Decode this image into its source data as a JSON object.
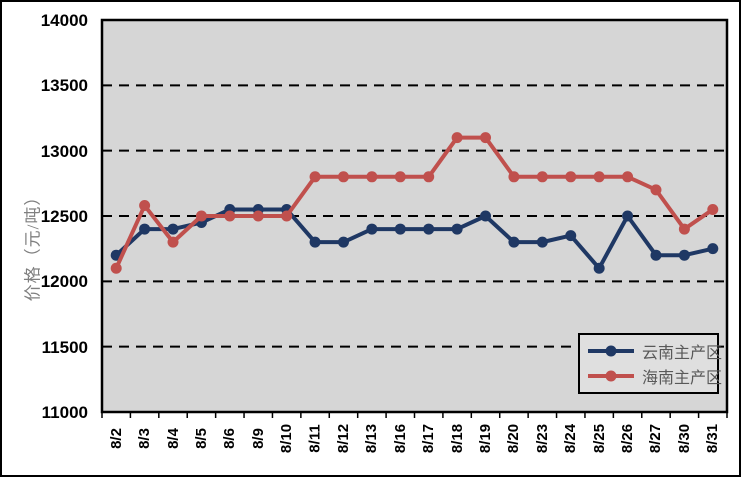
{
  "chart_data": {
    "type": "line",
    "title": "",
    "y_axis_title": "价格（元/吨）",
    "x_axis_title": "",
    "categories": [
      "8/2",
      "8/3",
      "8/4",
      "8/5",
      "8/6",
      "8/9",
      "8/10",
      "8/11",
      "8/12",
      "8/13",
      "8/16",
      "8/17",
      "8/18",
      "8/19",
      "8/20",
      "8/23",
      "8/24",
      "8/25",
      "8/26",
      "8/27",
      "8/30",
      "8/31"
    ],
    "series": [
      {
        "key": "yunnan",
        "name": "云南主产区",
        "color": "#1F3864",
        "values": [
          12200,
          12400,
          12400,
          12450,
          12550,
          12550,
          12550,
          12300,
          12300,
          12400,
          12400,
          12400,
          12400,
          12500,
          12300,
          12300,
          12350,
          12100,
          12500,
          12200,
          12200,
          12250
        ]
      },
      {
        "key": "hainan",
        "name": "海南主产区",
        "color": "#C0504D",
        "values": [
          12100,
          12580,
          12300,
          12500,
          12500,
          12500,
          12500,
          12800,
          12800,
          12800,
          12800,
          12800,
          13100,
          13100,
          12800,
          12800,
          12800,
          12800,
          12800,
          12700,
          12400,
          12550
        ]
      }
    ],
    "y_min": 11000,
    "y_max": 14000,
    "y_step": 500,
    "ylim": [
      11000,
      14000
    ],
    "grid": "horizontal-dashed",
    "legend_position": "bottom-right",
    "plot_background": "#D6D6D6",
    "gridline_color": "#000000"
  }
}
